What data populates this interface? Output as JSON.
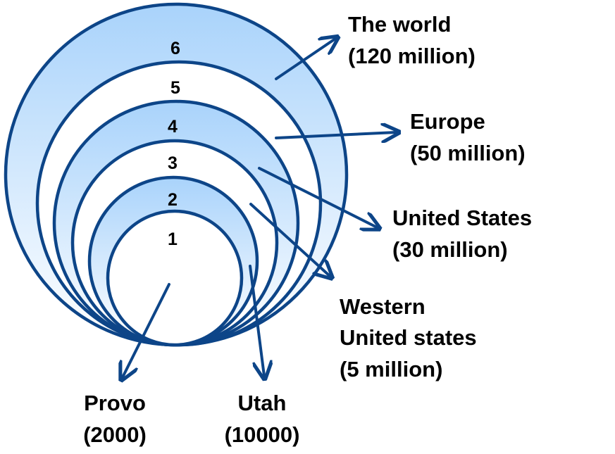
{
  "diagram": {
    "colors": {
      "ring_stroke": "#0d4588",
      "ring_fill_top": "#a9d3fb",
      "ring_fill_bottom": "#ffffff",
      "arrow": "#0d4588"
    },
    "rings": [
      {
        "number": "6",
        "shaded": true
      },
      {
        "number": "5",
        "shaded": false
      },
      {
        "number": "4",
        "shaded": true
      },
      {
        "number": "3",
        "shaded": false
      },
      {
        "number": "2",
        "shaded": true
      },
      {
        "number": "1",
        "shaded": false
      }
    ],
    "labels": {
      "world": {
        "line1": "The world",
        "line2": "(120 million)"
      },
      "europe": {
        "line1": "Europe",
        "line2": "(50 million)"
      },
      "us": {
        "line1": "United States",
        "line2": "(30 million)"
      },
      "western": {
        "line1": "Western",
        "line2": "United states",
        "line3": "(5 million)"
      },
      "provo": {
        "line1": "Provo",
        "line2": "(2000)"
      },
      "utah": {
        "line1": "Utah",
        "line2": "(10000)"
      }
    }
  }
}
